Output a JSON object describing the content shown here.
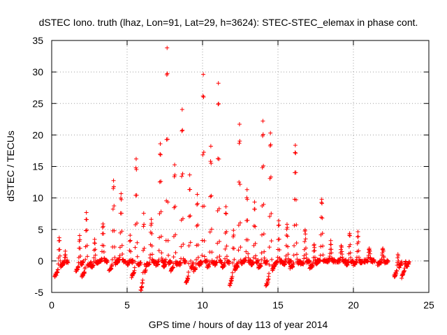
{
  "chart_data": {
    "type": "scatter",
    "title": "dSTEC Iono. truth (lhaz, Lon=91, Lat=29, h=3624): STEC-STEC_elemax in phase cont.",
    "xlabel": "GPS time / hours of day 113 of year 2014",
    "ylabel": "dSTEC  / TECUs",
    "xlim": [
      0,
      25
    ],
    "ylim": [
      -5,
      35
    ],
    "xticks": [
      0,
      5,
      10,
      15,
      20,
      25
    ],
    "yticks": [
      -5,
      0,
      5,
      10,
      15,
      20,
      25,
      30,
      35
    ],
    "grid": true,
    "marker": "+",
    "colors": {
      "points": "#ff0000",
      "axes": "#000000",
      "grid": "#a0a0a0"
    },
    "series": [
      {
        "name": "dSTEC",
        "arcs": [
          {
            "start": 0.2,
            "end": 0.8,
            "peak": 3.5,
            "min": -2.5
          },
          {
            "start": 0.7,
            "end": 1.1,
            "peak": 1.5,
            "min": -0.5
          },
          {
            "start": 1.6,
            "end": 2.1,
            "peak": 4.0,
            "min": -1.5
          },
          {
            "start": 2.0,
            "end": 2.6,
            "peak": 7.5,
            "min": -2.5
          },
          {
            "start": 2.6,
            "end": 3.1,
            "peak": 3.5,
            "min": -1.0
          },
          {
            "start": 3.1,
            "end": 3.7,
            "peak": 6.0,
            "min": 0.0
          },
          {
            "start": 3.8,
            "end": 4.4,
            "peak": 12.8,
            "min": -1.5
          },
          {
            "start": 4.3,
            "end": 4.9,
            "peak": 10.8,
            "min": 0.0
          },
          {
            "start": 5.0,
            "end": 5.4,
            "peak": 4.0,
            "min": -0.5
          },
          {
            "start": 5.3,
            "end": 5.9,
            "peak": 16.2,
            "min": -2.5
          },
          {
            "start": 5.9,
            "end": 6.3,
            "peak": 7.5,
            "min": -4.8
          },
          {
            "start": 6.3,
            "end": 6.9,
            "peak": 6.5,
            "min": -0.5
          },
          {
            "start": 6.9,
            "end": 7.5,
            "peak": 18.6,
            "min": -0.5
          },
          {
            "start": 7.4,
            "end": 7.9,
            "peak": 34.0,
            "min": -1.0
          },
          {
            "start": 7.9,
            "end": 8.4,
            "peak": 15.5,
            "min": -1.5
          },
          {
            "start": 8.4,
            "end": 8.9,
            "peak": 23.8,
            "min": -0.5
          },
          {
            "start": 8.9,
            "end": 9.4,
            "peak": 13.5,
            "min": -3.5
          },
          {
            "start": 9.4,
            "end": 9.9,
            "peak": 10.5,
            "min": -1.5
          },
          {
            "start": 9.8,
            "end": 10.3,
            "peak": 29.8,
            "min": -0.5
          },
          {
            "start": 10.3,
            "end": 10.8,
            "peak": 18.0,
            "min": -1.0
          },
          {
            "start": 10.8,
            "end": 11.3,
            "peak": 28.4,
            "min": -0.5
          },
          {
            "start": 11.3,
            "end": 11.8,
            "peak": 8.5,
            "min": -1.0
          },
          {
            "start": 11.8,
            "end": 12.3,
            "peak": 5.0,
            "min": -3.8
          },
          {
            "start": 12.2,
            "end": 12.7,
            "peak": 21.8,
            "min": -1.0
          },
          {
            "start": 12.7,
            "end": 13.2,
            "peak": 11.5,
            "min": 0.0
          },
          {
            "start": 13.2,
            "end": 13.7,
            "peak": 9.5,
            "min": -0.5
          },
          {
            "start": 13.7,
            "end": 14.3,
            "peak": 22.0,
            "min": -1.0
          },
          {
            "start": 14.2,
            "end": 14.8,
            "peak": 20.5,
            "min": -4.0
          },
          {
            "start": 14.8,
            "end": 15.3,
            "peak": 6.5,
            "min": -0.5
          },
          {
            "start": 15.3,
            "end": 15.9,
            "peak": 5.8,
            "min": -0.5
          },
          {
            "start": 15.8,
            "end": 16.5,
            "peak": 18.5,
            "min": -1.0
          },
          {
            "start": 16.5,
            "end": 17.1,
            "peak": 5.0,
            "min": -0.5
          },
          {
            "start": 17.1,
            "end": 17.7,
            "peak": 2.5,
            "min": -1.0
          },
          {
            "start": 17.6,
            "end": 18.2,
            "peak": 10.0,
            "min": 0.0
          },
          {
            "start": 18.2,
            "end": 18.8,
            "peak": 3.0,
            "min": 0.0
          },
          {
            "start": 18.9,
            "end": 19.5,
            "peak": 2.5,
            "min": 0.0
          },
          {
            "start": 19.5,
            "end": 20.0,
            "peak": 4.5,
            "min": -0.5
          },
          {
            "start": 20.0,
            "end": 20.6,
            "peak": 4.5,
            "min": -0.5
          },
          {
            "start": 20.7,
            "end": 21.4,
            "peak": 2.0,
            "min": 0.0
          },
          {
            "start": 21.6,
            "end": 22.3,
            "peak": 2.0,
            "min": -0.5
          },
          {
            "start": 22.7,
            "end": 23.2,
            "peak": 1.0,
            "min": -2.5
          },
          {
            "start": 23.2,
            "end": 23.7,
            "peak": 0.0,
            "min": -2.5
          }
        ]
      }
    ]
  }
}
